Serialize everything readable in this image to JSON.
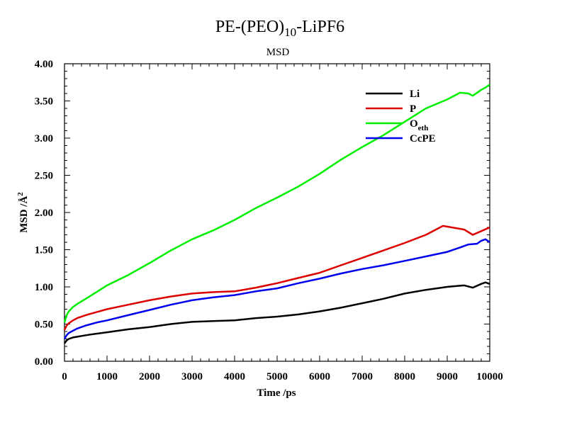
{
  "chart_data": {
    "type": "line",
    "title_main": "PE-(PEO)",
    "title_sub": "10",
    "title_end": "-LiPF6",
    "subtitle": "MSD",
    "xlabel": "Time /ps",
    "ylabel_main": "MSD /",
    "ylabel_unit": "Å",
    "ylabel_sup": "2",
    "xlim": [
      0,
      10000
    ],
    "ylim": [
      0,
      4
    ],
    "xticks": [
      "0",
      "1000",
      "2000",
      "3000",
      "4000",
      "5000",
      "6000",
      "7000",
      "8000",
      "9000",
      "10000"
    ],
    "yticks": [
      "0.00",
      "0.50",
      "1.00",
      "1.50",
      "2.00",
      "2.50",
      "3.00",
      "3.50",
      "4.00"
    ],
    "legend_position": "top-right",
    "series": [
      {
        "name": "Li",
        "color": "#000000",
        "x": [
          0,
          50,
          100,
          200,
          300,
          500,
          750,
          1000,
          1500,
          2000,
          2500,
          3000,
          3500,
          4000,
          4500,
          5000,
          5500,
          6000,
          6500,
          7000,
          7500,
          8000,
          8500,
          9000,
          9200,
          9400,
          9600,
          9800,
          9900,
          10000
        ],
        "y": [
          0.24,
          0.28,
          0.3,
          0.32,
          0.33,
          0.35,
          0.37,
          0.39,
          0.43,
          0.46,
          0.5,
          0.53,
          0.54,
          0.55,
          0.58,
          0.6,
          0.63,
          0.67,
          0.72,
          0.78,
          0.84,
          0.91,
          0.96,
          1.0,
          1.01,
          1.02,
          0.99,
          1.04,
          1.06,
          1.04
        ]
      },
      {
        "name": "P",
        "color": "#dd0000",
        "x": [
          0,
          50,
          100,
          200,
          300,
          500,
          750,
          1000,
          1500,
          2000,
          2500,
          3000,
          3500,
          4000,
          4500,
          5000,
          5500,
          6000,
          6500,
          7000,
          7500,
          8000,
          8500,
          8900,
          9200,
          9400,
          9600,
          9800,
          10000
        ],
        "y": [
          0.42,
          0.48,
          0.51,
          0.55,
          0.58,
          0.62,
          0.66,
          0.7,
          0.76,
          0.82,
          0.87,
          0.91,
          0.93,
          0.94,
          0.99,
          1.05,
          1.12,
          1.19,
          1.29,
          1.39,
          1.49,
          1.59,
          1.7,
          1.82,
          1.79,
          1.77,
          1.7,
          1.75,
          1.8
        ]
      },
      {
        "name": "O",
        "name_sub": "eth",
        "color": "#00ee00",
        "x": [
          0,
          50,
          100,
          200,
          300,
          500,
          750,
          1000,
          1500,
          2000,
          2500,
          3000,
          3500,
          4000,
          4500,
          5000,
          5500,
          6000,
          6500,
          7000,
          7500,
          8000,
          8500,
          9000,
          9300,
          9500,
          9600,
          9800,
          9900,
          10000
        ],
        "y": [
          0.52,
          0.62,
          0.67,
          0.73,
          0.77,
          0.84,
          0.93,
          1.02,
          1.16,
          1.32,
          1.49,
          1.64,
          1.76,
          1.9,
          2.06,
          2.2,
          2.35,
          2.52,
          2.71,
          2.88,
          3.04,
          3.22,
          3.4,
          3.52,
          3.61,
          3.6,
          3.57,
          3.65,
          3.68,
          3.72
        ]
      },
      {
        "name": "CcPE",
        "color": "#0000ee",
        "x": [
          0,
          50,
          100,
          200,
          300,
          500,
          750,
          1000,
          1500,
          2000,
          2500,
          3000,
          3500,
          4000,
          4500,
          5000,
          5500,
          6000,
          6500,
          7000,
          7500,
          8000,
          8500,
          9000,
          9300,
          9500,
          9700,
          9800,
          9900,
          10000
        ],
        "y": [
          0.3,
          0.35,
          0.38,
          0.41,
          0.44,
          0.48,
          0.52,
          0.55,
          0.62,
          0.69,
          0.76,
          0.82,
          0.86,
          0.89,
          0.94,
          0.98,
          1.05,
          1.11,
          1.18,
          1.24,
          1.29,
          1.35,
          1.41,
          1.47,
          1.53,
          1.57,
          1.58,
          1.62,
          1.64,
          1.6
        ]
      }
    ]
  }
}
